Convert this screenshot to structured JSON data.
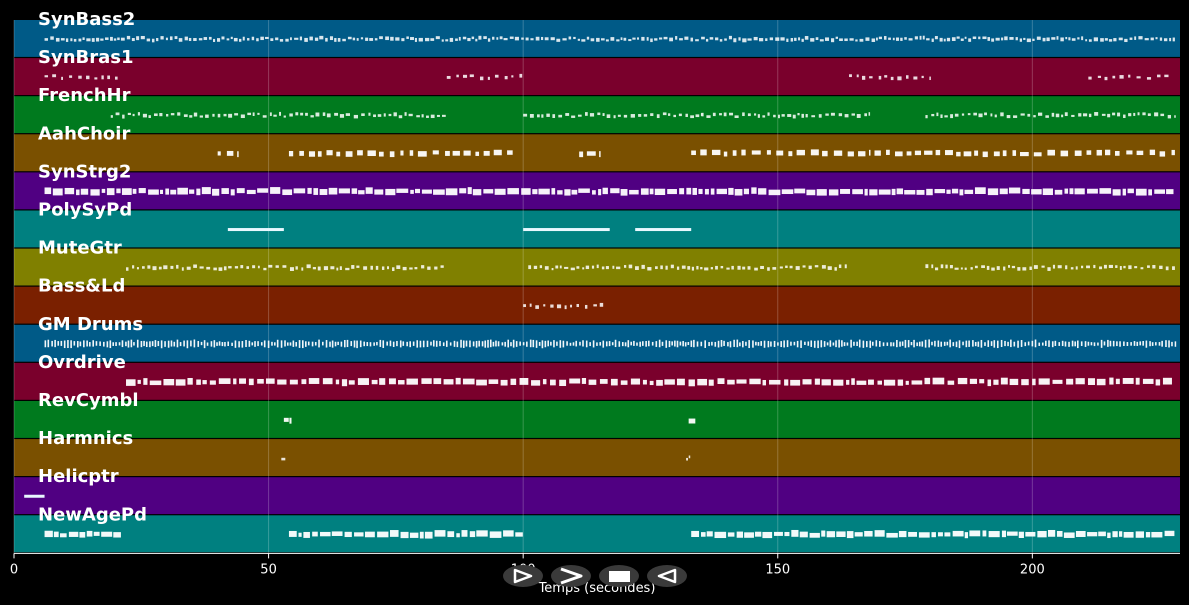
{
  "chart_data": {
    "type": "piano-roll",
    "xlabel": "Temps (secondes)",
    "xlim": [
      0,
      229
    ],
    "xticks": [
      0,
      50,
      100,
      150,
      200
    ],
    "grid": true,
    "tracks": [
      {
        "name": "SynBass2",
        "color": "#005a87",
        "segments": [
          [
            6,
            228
          ]
        ],
        "density": "dense",
        "style": "dots"
      },
      {
        "name": "SynBras1",
        "color": "#7a002c",
        "segments": [
          [
            6,
            21
          ],
          [
            85,
            101
          ],
          [
            164,
            180
          ],
          [
            211,
            227
          ]
        ],
        "density": "sparse",
        "style": "dots"
      },
      {
        "name": "FrenchHr",
        "color": "#007a1e",
        "segments": [
          [
            19,
            85
          ],
          [
            100,
            135
          ],
          [
            135,
            168
          ],
          [
            179,
            228
          ]
        ],
        "density": "medium",
        "style": "dots"
      },
      {
        "name": "AahChoir",
        "color": "#7a5000",
        "segments": [
          [
            40,
            44
          ],
          [
            54,
            98
          ],
          [
            111,
            115
          ],
          [
            133,
            168
          ],
          [
            169,
            228
          ]
        ],
        "density": "sparse",
        "style": "blocks"
      },
      {
        "name": "SynStrg2",
        "color": "#500082",
        "segments": [
          [
            6,
            228
          ]
        ],
        "density": "dense",
        "style": "bars"
      },
      {
        "name": "PolySyPd",
        "color": "#008080",
        "segments": [
          [
            42,
            53
          ],
          [
            100,
            117
          ],
          [
            122,
            133
          ]
        ],
        "density": "dense",
        "style": "line"
      },
      {
        "name": "MuteGtr",
        "color": "#808000",
        "segments": [
          [
            22,
            85
          ],
          [
            101,
            164
          ],
          [
            179,
            228
          ]
        ],
        "density": "medium",
        "style": "dots"
      },
      {
        "name": "Bass&Ld",
        "color": "#7a2000",
        "segments": [
          [
            100,
            116
          ]
        ],
        "density": "sparse",
        "style": "dots"
      },
      {
        "name": "GM Drums",
        "color": "#005a87",
        "segments": [
          [
            6,
            228
          ]
        ],
        "density": "dense",
        "style": "ticks"
      },
      {
        "name": "Ovrdrive",
        "color": "#7a002c",
        "segments": [
          [
            22,
            228
          ]
        ],
        "density": "medium",
        "style": "bars"
      },
      {
        "name": "RevCymbl",
        "color": "#007a1e",
        "segments": [
          [
            53,
            54.5
          ],
          [
            132.5,
            134
          ]
        ],
        "density": "single",
        "style": "blocks"
      },
      {
        "name": "Harmnics",
        "color": "#7a5000",
        "segments": [
          [
            52.5,
            53.5
          ],
          [
            132,
            132.8
          ]
        ],
        "density": "single",
        "style": "dots"
      },
      {
        "name": "Helicptr",
        "color": "#500082",
        "segments": [
          [
            2,
            6
          ]
        ],
        "density": "single",
        "style": "line"
      },
      {
        "name": "NewAgePd",
        "color": "#008080",
        "segments": [
          [
            6,
            21
          ],
          [
            54,
            100
          ],
          [
            133,
            228
          ]
        ],
        "density": "dense",
        "style": "bars"
      }
    ]
  },
  "controls": [
    {
      "name": "play-button",
      "icon": "play-icon"
    },
    {
      "name": "forward-button",
      "icon": "forward-icon"
    },
    {
      "name": "stop-button",
      "icon": "stop-icon"
    },
    {
      "name": "rewind-button",
      "icon": "rewind-icon"
    }
  ]
}
